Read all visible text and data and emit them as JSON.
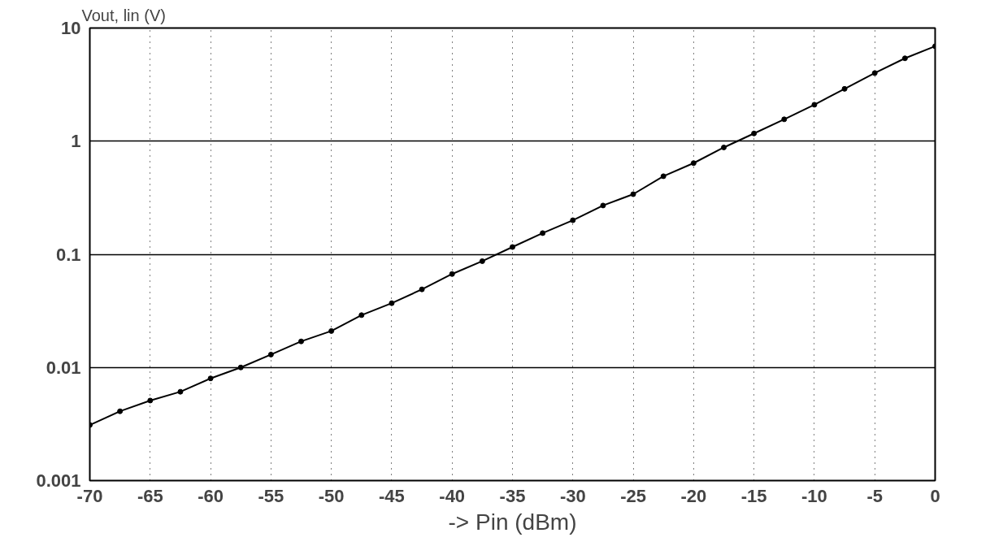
{
  "chart_data": {
    "type": "line",
    "xlabel": "-> Pin (dBm)",
    "ylabel": "Vout, lin (V)",
    "x": [
      -70,
      -67.5,
      -65,
      -62.5,
      -60,
      -57.5,
      -55,
      -52.5,
      -50,
      -47.5,
      -45,
      -42.5,
      -40,
      -37.5,
      -35,
      -32.5,
      -30,
      -27.5,
      -25,
      -22.5,
      -20,
      -17.5,
      -15,
      -12.5,
      -10,
      -7.5,
      -5,
      -2.5,
      0
    ],
    "series": [
      {
        "color": "#000000",
        "values": [
          0.0031,
          0.0041,
          0.0051,
          0.0061,
          0.008,
          0.01,
          0.013,
          0.017,
          0.021,
          0.029,
          0.037,
          0.049,
          0.067,
          0.087,
          0.116,
          0.154,
          0.2,
          0.27,
          0.34,
          0.49,
          0.64,
          0.88,
          1.17,
          1.56,
          2.1,
          2.9,
          4.0,
          5.4,
          6.9
        ]
      }
    ],
    "xlim": [
      -70,
      0
    ],
    "ylim": [
      0.001,
      10
    ],
    "xticks": [
      -70,
      -65,
      -60,
      -55,
      -50,
      -45,
      -40,
      -35,
      -30,
      -25,
      -20,
      -15,
      -10,
      -5,
      0
    ],
    "yticks": [
      0.001,
      0.01,
      0.1,
      1,
      10
    ],
    "log": "y",
    "grid": true,
    "marker": "circle",
    "line_style": "solid"
  }
}
